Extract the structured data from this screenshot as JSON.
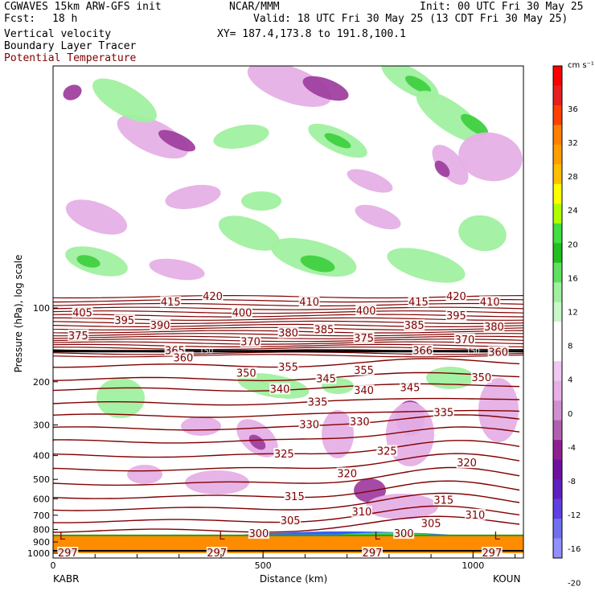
{
  "header": {
    "left1": "CGWAVES 15km ARW-GFS init",
    "center1": "NCAR/MMM",
    "right1": "Init: 00 UTC Fri 30 May 25",
    "fcst_label": "Fcst:",
    "fcst_value": "18 h",
    "valid": "Valid: 18 UTC Fri 30 May 25 (13 CDT Fri 30 May 25)",
    "field1": "Vertical velocity",
    "field2": "Boundary Layer Tracer",
    "field3": "Potential Temperature",
    "xy": "XY= 187.4,173.8 to 191.8,100.1"
  },
  "colors": {
    "theta": "#800000",
    "up": "#a0f0a0",
    "up_strong": "#40d040",
    "down": "#e6b0e6",
    "down_strong": "#a040a0"
  },
  "chart_data": {
    "type": "cross-section",
    "xlabel": "Distance (km)",
    "ylabel": "Pressure (hPa), log scale",
    "x_ticks": [
      "0",
      "500",
      "1000"
    ],
    "x_tick_values": [
      0,
      500,
      1000
    ],
    "xlim": [
      0,
      1120
    ],
    "y_ticks": [
      "100",
      "200",
      "300",
      "400",
      "500",
      "600",
      "700",
      "800",
      "900",
      "1000"
    ],
    "y_tick_values": [
      100,
      200,
      300,
      400,
      500,
      600,
      700,
      800,
      900,
      1000
    ],
    "endpoints": {
      "left": "KABR",
      "right": "KOUN"
    },
    "theta_labels": [
      {
        "text": "415",
        "x": 280,
        "p": 95
      },
      {
        "text": "420",
        "x": 380,
        "p": 90
      },
      {
        "text": "410",
        "x": 610,
        "p": 95
      },
      {
        "text": "415",
        "x": 870,
        "p": 95
      },
      {
        "text": "420",
        "x": 960,
        "p": 90
      },
      {
        "text": "410",
        "x": 1040,
        "p": 95
      },
      {
        "text": "405",
        "x": 70,
        "p": 105
      },
      {
        "text": "395",
        "x": 170,
        "p": 113
      },
      {
        "text": "390",
        "x": 255,
        "p": 118
      },
      {
        "text": "400",
        "x": 450,
        "p": 105
      },
      {
        "text": "400",
        "x": 745,
        "p": 103
      },
      {
        "text": "395",
        "x": 960,
        "p": 108
      },
      {
        "text": "385",
        "x": 645,
        "p": 123
      },
      {
        "text": "385",
        "x": 860,
        "p": 118
      },
      {
        "text": "380",
        "x": 560,
        "p": 127
      },
      {
        "text": "380",
        "x": 1050,
        "p": 120
      },
      {
        "text": "375",
        "x": 60,
        "p": 130
      },
      {
        "text": "375",
        "x": 740,
        "p": 133
      },
      {
        "text": "370",
        "x": 470,
        "p": 138
      },
      {
        "text": "370",
        "x": 980,
        "p": 135
      },
      {
        "text": "365",
        "x": 290,
        "p": 150
      },
      {
        "text": "360",
        "x": 310,
        "p": 160
      },
      {
        "text": "366",
        "x": 880,
        "p": 150
      },
      {
        "text": "360",
        "x": 1060,
        "p": 152
      },
      {
        "text": "355",
        "x": 560,
        "p": 175
      },
      {
        "text": "355",
        "x": 740,
        "p": 180
      },
      {
        "text": "350",
        "x": 460,
        "p": 185
      },
      {
        "text": "350",
        "x": 1020,
        "p": 193
      },
      {
        "text": "345",
        "x": 650,
        "p": 195
      },
      {
        "text": "345",
        "x": 850,
        "p": 212
      },
      {
        "text": "340",
        "x": 540,
        "p": 215
      },
      {
        "text": "340",
        "x": 740,
        "p": 218
      },
      {
        "text": "335",
        "x": 630,
        "p": 243
      },
      {
        "text": "335",
        "x": 930,
        "p": 268
      },
      {
        "text": "330",
        "x": 610,
        "p": 300
      },
      {
        "text": "330",
        "x": 730,
        "p": 292
      },
      {
        "text": "325",
        "x": 550,
        "p": 395
      },
      {
        "text": "325",
        "x": 795,
        "p": 385
      },
      {
        "text": "320",
        "x": 700,
        "p": 475
      },
      {
        "text": "320",
        "x": 985,
        "p": 430
      },
      {
        "text": "315",
        "x": 575,
        "p": 590
      },
      {
        "text": "315",
        "x": 930,
        "p": 610
      },
      {
        "text": "310",
        "x": 735,
        "p": 680
      },
      {
        "text": "310",
        "x": 1005,
        "p": 700
      },
      {
        "text": "305",
        "x": 565,
        "p": 740
      },
      {
        "text": "305",
        "x": 900,
        "p": 760
      },
      {
        "text": "300",
        "x": 490,
        "p": 835
      },
      {
        "text": "300",
        "x": 835,
        "p": 835
      },
      {
        "text": "297",
        "x": 35,
        "p": 1000
      },
      {
        "text": "297",
        "x": 390,
        "p": 1000
      },
      {
        "text": "297",
        "x": 760,
        "p": 1000
      },
      {
        "text": "297",
        "x": 1045,
        "p": 1000
      }
    ],
    "low_markers": [
      {
        "text": "L",
        "x": 15,
        "p": 880
      },
      {
        "text": "L",
        "x": 395,
        "p": 880
      },
      {
        "text": "L",
        "x": 765,
        "p": 880
      },
      {
        "text": "L",
        "x": 1050,
        "p": 880
      }
    ],
    "tropopause_labels": [
      {
        "text": "150",
        "x": 365,
        "p": 150
      },
      {
        "text": "150",
        "x": 1000,
        "p": 150
      }
    ],
    "colorbar": {
      "unit": "cm s⁻¹",
      "labels": [
        "36",
        "32",
        "28",
        "24",
        "20",
        "16",
        "12",
        "8",
        "4",
        "0",
        "-4",
        "-8",
        "-12",
        "-16",
        "-20"
      ],
      "colors": [
        "#ff0000",
        "#e62020",
        "#ff4000",
        "#ff8000",
        "#ff9e00",
        "#ffbf00",
        "#ffff00",
        "#b0ff00",
        "#40e040",
        "#20c020",
        "#60e060",
        "#a0f0a0",
        "#c8f8c8",
        "#ffffff",
        "#ffffff",
        "#f0c8f0",
        "#e6b0e6",
        "#d090d0",
        "#b060b0",
        "#902090",
        "#7010a0",
        "#6020c0",
        "#6040e0",
        "#7070f0",
        "#9090ff"
      ]
    }
  }
}
